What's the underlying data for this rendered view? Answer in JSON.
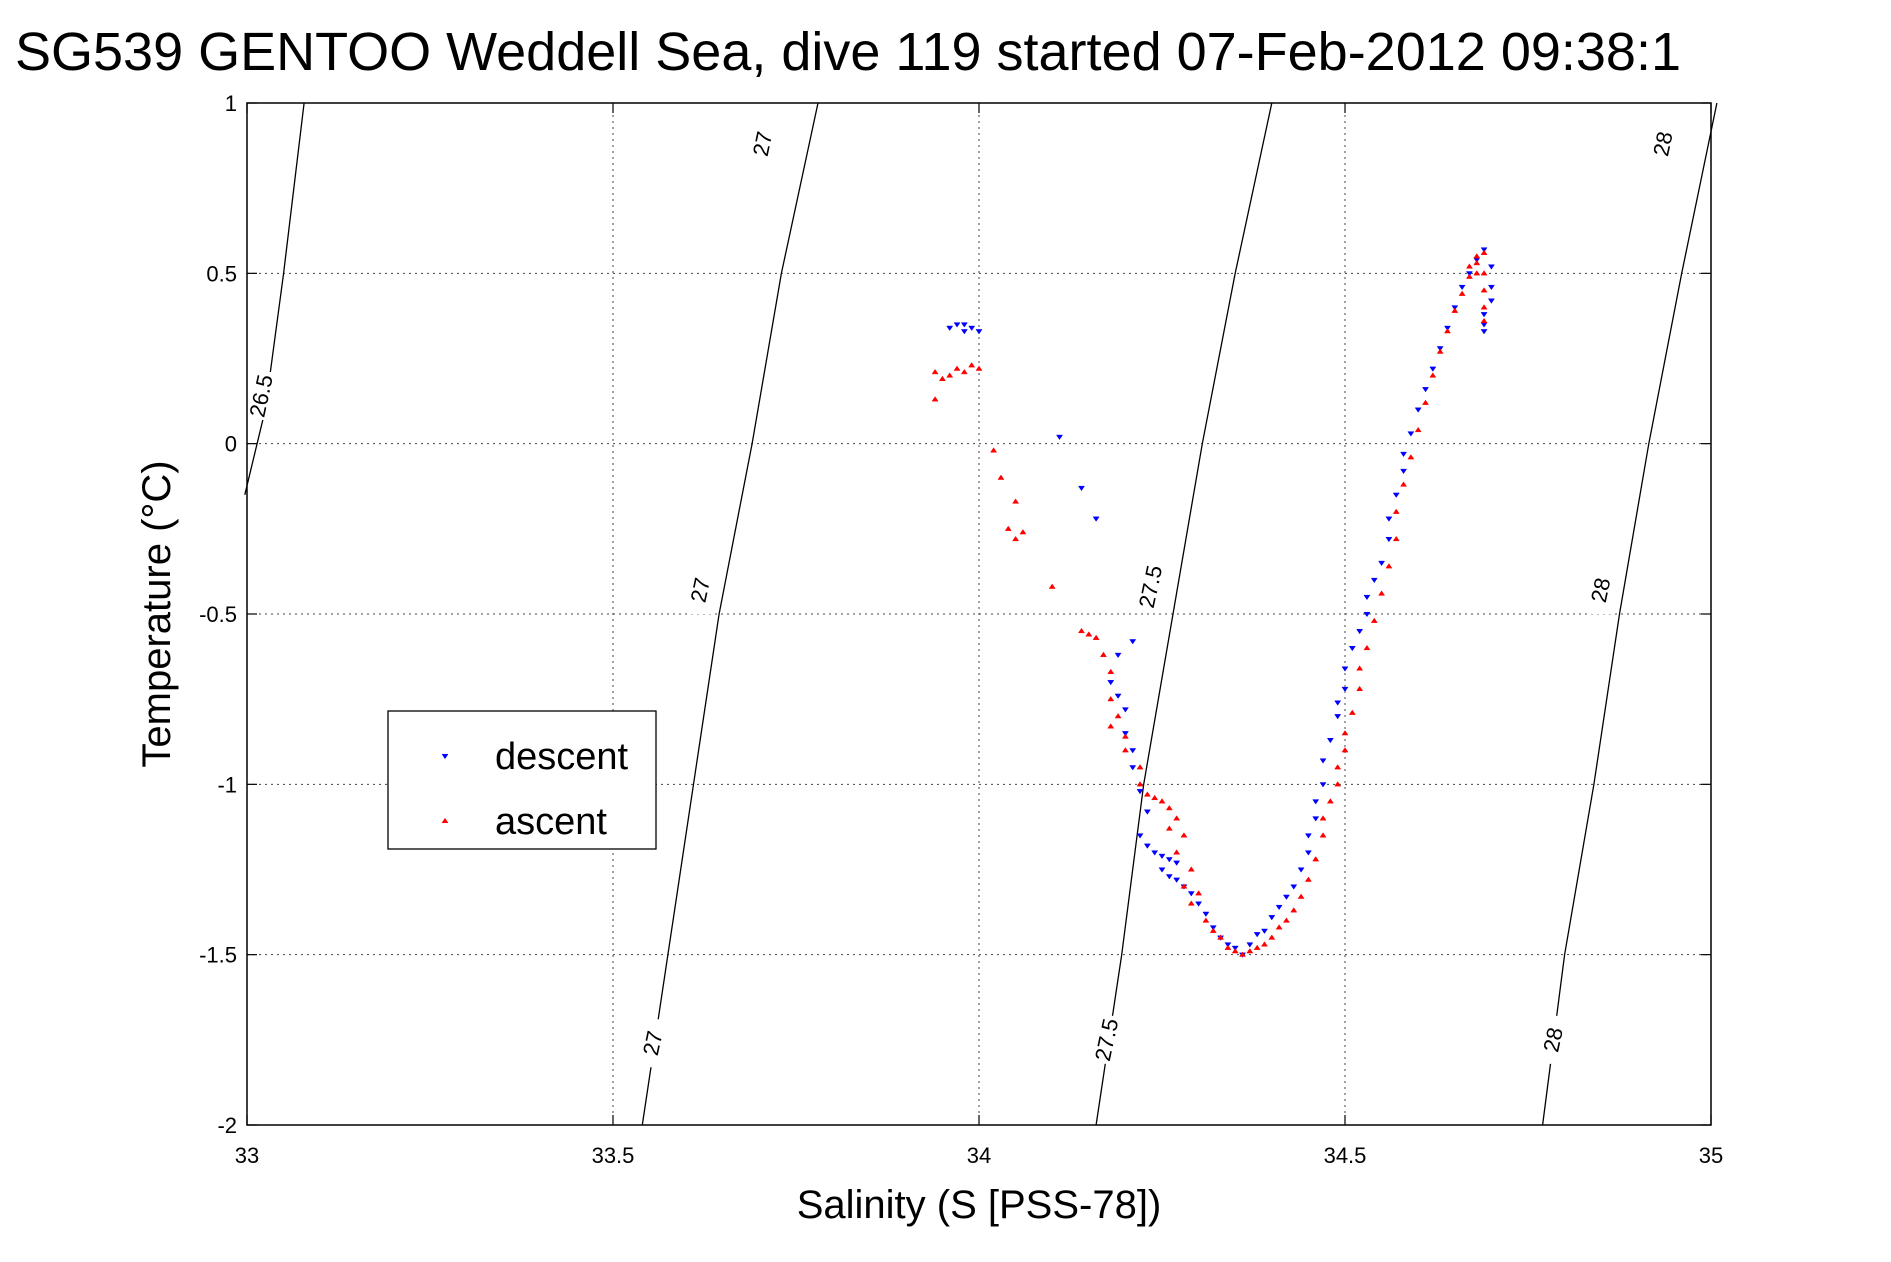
{
  "chart_data": {
    "type": "scatter",
    "title": "SG539 GENTOO Weddell Sea, dive 119 started 07-Feb-2012 09:38:1",
    "xlabel": "Salinity (S [PSS-78])",
    "ylabel": "Temperature (°C)",
    "xlim": [
      33,
      35
    ],
    "ylim": [
      -2,
      1
    ],
    "xticks": [
      33,
      33.5,
      34,
      34.5,
      35
    ],
    "yticks": [
      -2,
      -1.5,
      -1,
      -0.5,
      0,
      0.5,
      1
    ],
    "xtick_labels": [
      "33",
      "33.5",
      "34",
      "34.5",
      "35"
    ],
    "ytick_labels": [
      "-2",
      "-1.5",
      "-1",
      "-0.5",
      "0",
      "0.5",
      "1"
    ],
    "grid": true,
    "legend_position": "left-center",
    "legend": [
      "descent",
      "ascent"
    ],
    "contours": [
      {
        "label": "26.5",
        "points": [
          [
            32.997,
            -0.15
          ],
          [
            33.025,
            0.1
          ],
          [
            33.05,
            0.5
          ],
          [
            33.078,
            1.0
          ]
        ],
        "labels_at": [
          {
            "text": "26.5",
            "x": 33.02,
            "y": 0.14
          }
        ]
      },
      {
        "label": "27",
        "points": [
          [
            33.54,
            -2.0
          ],
          [
            33.575,
            -1.5
          ],
          [
            33.61,
            -1.0
          ],
          [
            33.645,
            -0.5
          ],
          [
            33.69,
            0.0
          ],
          [
            33.73,
            0.5
          ],
          [
            33.78,
            1.0
          ]
        ],
        "labels_at": [
          {
            "text": "27",
            "x": 33.555,
            "y": -1.76
          },
          {
            "text": "27",
            "x": 33.62,
            "y": -0.43
          },
          {
            "text": "27",
            "x": 33.705,
            "y": 0.88
          }
        ]
      },
      {
        "label": "27.5",
        "points": [
          [
            34.16,
            -2.0
          ],
          [
            34.195,
            -1.5
          ],
          [
            34.225,
            -1.0
          ],
          [
            34.265,
            -0.5
          ],
          [
            34.305,
            0.0
          ],
          [
            34.35,
            0.5
          ],
          [
            34.4,
            1.0
          ]
        ],
        "labels_at": [
          {
            "text": "27.5",
            "x": 34.175,
            "y": -1.75
          },
          {
            "text": "27.5",
            "x": 34.235,
            "y": -0.42
          }
        ]
      },
      {
        "label": "28",
        "points": [
          [
            34.77,
            -2.0
          ],
          [
            34.8,
            -1.5
          ],
          [
            34.84,
            -1.0
          ],
          [
            34.875,
            -0.5
          ],
          [
            34.915,
            0.0
          ],
          [
            34.96,
            0.5
          ],
          [
            35.008,
            1.0
          ]
        ],
        "labels_at": [
          {
            "text": "28",
            "x": 34.785,
            "y": -1.75
          },
          {
            "text": "28",
            "x": 34.85,
            "y": -0.43
          },
          {
            "text": "28",
            "x": 34.935,
            "y": 0.88
          }
        ]
      }
    ],
    "series": [
      {
        "name": "descent",
        "color": "#0000ff",
        "marker": "triangle-down",
        "points": [
          [
            33.98,
            0.35
          ],
          [
            33.97,
            0.35
          ],
          [
            33.99,
            0.34
          ],
          [
            33.96,
            0.34
          ],
          [
            33.98,
            0.33
          ],
          [
            34.0,
            0.33
          ],
          [
            34.11,
            0.02
          ],
          [
            34.14,
            -0.13
          ],
          [
            34.16,
            -0.22
          ],
          [
            34.21,
            -0.58
          ],
          [
            34.19,
            -0.62
          ],
          [
            34.18,
            -0.7
          ],
          [
            34.19,
            -0.74
          ],
          [
            34.2,
            -0.78
          ],
          [
            34.2,
            -0.85
          ],
          [
            34.21,
            -0.9
          ],
          [
            34.21,
            -0.95
          ],
          [
            34.22,
            -1.02
          ],
          [
            34.23,
            -1.08
          ],
          [
            34.22,
            -1.15
          ],
          [
            34.23,
            -1.18
          ],
          [
            34.24,
            -1.2
          ],
          [
            34.25,
            -1.21
          ],
          [
            34.26,
            -1.22
          ],
          [
            34.27,
            -1.23
          ],
          [
            34.25,
            -1.25
          ],
          [
            34.26,
            -1.27
          ],
          [
            34.27,
            -1.28
          ],
          [
            34.28,
            -1.3
          ],
          [
            34.29,
            -1.32
          ],
          [
            34.3,
            -1.35
          ],
          [
            34.31,
            -1.38
          ],
          [
            34.32,
            -1.42
          ],
          [
            34.33,
            -1.45
          ],
          [
            34.34,
            -1.47
          ],
          [
            34.35,
            -1.48
          ],
          [
            34.36,
            -1.5
          ],
          [
            34.37,
            -1.47
          ],
          [
            34.38,
            -1.44
          ],
          [
            34.39,
            -1.43
          ],
          [
            34.4,
            -1.39
          ],
          [
            34.41,
            -1.36
          ],
          [
            34.42,
            -1.33
          ],
          [
            34.43,
            -1.3
          ],
          [
            34.44,
            -1.25
          ],
          [
            34.45,
            -1.2
          ],
          [
            34.45,
            -1.15
          ],
          [
            34.46,
            -1.1
          ],
          [
            34.46,
            -1.05
          ],
          [
            34.47,
            -1.0
          ],
          [
            34.47,
            -0.93
          ],
          [
            34.48,
            -0.87
          ],
          [
            34.49,
            -0.8
          ],
          [
            34.49,
            -0.76
          ],
          [
            34.5,
            -0.72
          ],
          [
            34.5,
            -0.66
          ],
          [
            34.51,
            -0.6
          ],
          [
            34.52,
            -0.55
          ],
          [
            34.53,
            -0.5
          ],
          [
            34.53,
            -0.45
          ],
          [
            34.54,
            -0.4
          ],
          [
            34.55,
            -0.35
          ],
          [
            34.56,
            -0.28
          ],
          [
            34.56,
            -0.22
          ],
          [
            34.57,
            -0.15
          ],
          [
            34.58,
            -0.08
          ],
          [
            34.58,
            -0.03
          ],
          [
            34.59,
            0.03
          ],
          [
            34.6,
            0.1
          ],
          [
            34.61,
            0.16
          ],
          [
            34.62,
            0.22
          ],
          [
            34.63,
            0.28
          ],
          [
            34.64,
            0.34
          ],
          [
            34.65,
            0.4
          ],
          [
            34.66,
            0.46
          ],
          [
            34.67,
            0.5
          ],
          [
            34.68,
            0.54
          ],
          [
            34.69,
            0.57
          ],
          [
            34.7,
            0.52
          ],
          [
            34.7,
            0.46
          ],
          [
            34.7,
            0.42
          ],
          [
            34.69,
            0.38
          ],
          [
            34.69,
            0.35
          ],
          [
            34.69,
            0.33
          ]
        ]
      },
      {
        "name": "ascent",
        "color": "#ff0000",
        "marker": "triangle-up",
        "points": [
          [
            33.94,
            0.21
          ],
          [
            33.96,
            0.2
          ],
          [
            33.97,
            0.22
          ],
          [
            33.95,
            0.19
          ],
          [
            33.99,
            0.23
          ],
          [
            34.0,
            0.22
          ],
          [
            33.98,
            0.21
          ],
          [
            33.94,
            0.13
          ],
          [
            34.02,
            -0.02
          ],
          [
            34.03,
            -0.1
          ],
          [
            34.05,
            -0.17
          ],
          [
            34.04,
            -0.25
          ],
          [
            34.06,
            -0.26
          ],
          [
            34.05,
            -0.28
          ],
          [
            34.1,
            -0.42
          ],
          [
            34.14,
            -0.55
          ],
          [
            34.15,
            -0.56
          ],
          [
            34.16,
            -0.57
          ],
          [
            34.17,
            -0.62
          ],
          [
            34.18,
            -0.67
          ],
          [
            34.18,
            -0.75
          ],
          [
            34.19,
            -0.8
          ],
          [
            34.18,
            -0.83
          ],
          [
            34.2,
            -0.86
          ],
          [
            34.2,
            -0.9
          ],
          [
            34.22,
            -0.95
          ],
          [
            34.22,
            -1.0
          ],
          [
            34.23,
            -1.03
          ],
          [
            34.24,
            -1.04
          ],
          [
            34.25,
            -1.05
          ],
          [
            34.26,
            -1.07
          ],
          [
            34.27,
            -1.1
          ],
          [
            34.26,
            -1.13
          ],
          [
            34.28,
            -1.15
          ],
          [
            34.27,
            -1.2
          ],
          [
            34.29,
            -1.25
          ],
          [
            34.28,
            -1.3
          ],
          [
            34.3,
            -1.32
          ],
          [
            34.29,
            -1.35
          ],
          [
            34.31,
            -1.4
          ],
          [
            34.32,
            -1.43
          ],
          [
            34.33,
            -1.45
          ],
          [
            34.34,
            -1.48
          ],
          [
            34.35,
            -1.49
          ],
          [
            34.36,
            -1.5
          ],
          [
            34.37,
            -1.49
          ],
          [
            34.38,
            -1.48
          ],
          [
            34.39,
            -1.47
          ],
          [
            34.4,
            -1.45
          ],
          [
            34.41,
            -1.42
          ],
          [
            34.42,
            -1.4
          ],
          [
            34.43,
            -1.37
          ],
          [
            34.44,
            -1.33
          ],
          [
            34.45,
            -1.28
          ],
          [
            34.46,
            -1.22
          ],
          [
            34.47,
            -1.15
          ],
          [
            34.47,
            -1.1
          ],
          [
            34.48,
            -1.05
          ],
          [
            34.49,
            -1.0
          ],
          [
            34.49,
            -0.95
          ],
          [
            34.5,
            -0.9
          ],
          [
            34.5,
            -0.85
          ],
          [
            34.51,
            -0.79
          ],
          [
            34.52,
            -0.72
          ],
          [
            34.52,
            -0.66
          ],
          [
            34.53,
            -0.6
          ],
          [
            34.54,
            -0.52
          ],
          [
            34.55,
            -0.44
          ],
          [
            34.56,
            -0.36
          ],
          [
            34.57,
            -0.28
          ],
          [
            34.57,
            -0.2
          ],
          [
            34.58,
            -0.12
          ],
          [
            34.59,
            -0.04
          ],
          [
            34.6,
            0.04
          ],
          [
            34.61,
            0.12
          ],
          [
            34.62,
            0.2
          ],
          [
            34.63,
            0.27
          ],
          [
            34.64,
            0.33
          ],
          [
            34.65,
            0.39
          ],
          [
            34.66,
            0.44
          ],
          [
            34.67,
            0.49
          ],
          [
            34.68,
            0.53
          ],
          [
            34.69,
            0.56
          ],
          [
            34.69,
            0.5
          ],
          [
            34.69,
            0.45
          ],
          [
            34.69,
            0.4
          ],
          [
            34.69,
            0.36
          ],
          [
            34.68,
            0.55
          ],
          [
            34.67,
            0.52
          ],
          [
            34.68,
            0.5
          ]
        ]
      }
    ]
  }
}
